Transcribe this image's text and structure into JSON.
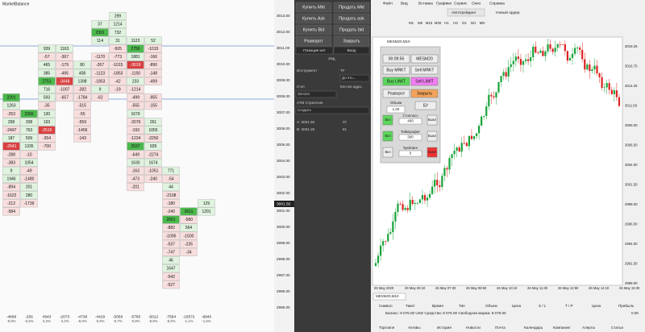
{
  "cluster": {
    "title": "MarketBalance",
    "columns": [
      [
        null,
        null,
        null,
        null,
        null,
        null,
        null,
        null,
        null,
        null,
        2291,
        1263,
        -253,
        258,
        -2497,
        187,
        -2941,
        -288,
        -383,
        9,
        1946,
        -894,
        -1622,
        -212,
        -584
      ],
      [
        null,
        null,
        null,
        null,
        null,
        null,
        null,
        null,
        null,
        null,
        null,
        null,
        2266,
        208,
        763,
        509,
        1335,
        -10,
        1054,
        -49,
        -1480,
        201,
        280,
        -1739
      ],
      [
        null,
        null,
        null,
        null,
        939,
        -57,
        465,
        385,
        2751,
        716,
        593,
        -35,
        130,
        193,
        -2510,
        -354,
        -700
      ],
      [
        null,
        null,
        null,
        null,
        1163,
        -367,
        -179,
        -495,
        -3448,
        -1007,
        -657
      ],
      [
        null,
        null,
        null,
        null,
        null,
        null,
        80,
        408,
        1398,
        -282,
        -1784,
        -515,
        -55,
        -559,
        -1456,
        -143
      ],
      [
        null,
        37,
        2391,
        114,
        null,
        -1170,
        -267,
        -1123,
        -1853,
        9,
        -62
      ],
      [
        299,
        1214,
        732,
        31,
        -505,
        -773,
        -1015,
        -1853,
        -42,
        -19
      ],
      [
        null,
        null,
        null,
        1123,
        2756,
        1881,
        -3019,
        -1150,
        233,
        -1214,
        -499,
        -555,
        1679,
        -2076,
        -193,
        -1224,
        2537,
        -649,
        1630,
        -163,
        -473,
        -201
      ],
      [
        null,
        null,
        null,
        52,
        -1015,
        -166,
        -890,
        -148,
        -499,
        null,
        -955,
        -155,
        null,
        261,
        1055,
        -2250,
        928,
        -2274,
        1674,
        -1051,
        -240
      ],
      [
        null,
        null,
        null,
        null,
        null,
        null,
        null,
        null,
        null,
        null,
        null,
        null,
        null,
        null,
        null,
        null,
        null,
        null,
        null,
        771,
        -54,
        44,
        -2108,
        -180,
        -240,
        2651,
        -882,
        -1095,
        -537,
        -747,
        46,
        1647,
        -542,
        -527
      ],
      [
        null,
        null,
        null,
        null,
        null,
        null,
        null,
        null,
        null,
        null,
        null,
        null,
        null,
        null,
        null,
        null,
        null,
        null,
        null,
        null,
        null,
        null,
        null,
        null,
        2611,
        -580,
        564,
        -1500,
        -235,
        -34
      ],
      [
        null,
        null,
        null,
        null,
        null,
        null,
        null,
        null,
        null,
        null,
        null,
        null,
        null,
        null,
        null,
        null,
        null,
        null,
        null,
        null,
        null,
        null,
        null,
        129,
        1291
      ]
    ],
    "totals": [
      -4668,
      -256,
      4943,
      -2073,
      -4738,
      -4429,
      -5058,
      -5765,
      -5012,
      -7564,
      -10572,
      -9940
    ],
    "percents": [
      "-8,8%",
      "-0,6%",
      "6,3%",
      "-3,2%",
      "-8,0%",
      "-6,9%",
      "-9,7%",
      "-0,8%",
      "-8,8%",
      "-8,0%",
      "-1,1%",
      "-1,6%"
    ]
  },
  "price_axis": {
    "labels": [
      "3013.00",
      "3012.00",
      "3011.00",
      "3010.00",
      "3009.00",
      "3008.00",
      "3007.00",
      "3006.00",
      "3005.00",
      "3004.00",
      "3003.00",
      "3002.00",
      "3001.00",
      "3000.00",
      "2999.00",
      "2998.00",
      "2997.00",
      "2996.00",
      "2995.00"
    ],
    "current": "3001.50"
  },
  "trade_panel": {
    "buy": [
      "Купить Mkt",
      "Купить Ask",
      "Купить Bid",
      "Разворот"
    ],
    "sell": [
      "Продать Mkt",
      "Продать ask",
      "Продать bid",
      "Закрыть"
    ],
    "tabs": [
      "Позиция нет",
      "Вход"
    ],
    "pnl": "PNL",
    "instrument": "Инструмент",
    "tf": "TF",
    "tf_value": "До ять...",
    "account": "Счет",
    "account_value": "Sim101",
    "qty": "Кол-во одра..",
    "atm": "ATM Стратегия",
    "atm_value": "Создать",
    "ask": "A: 3001.50",
    "ask_qty": "07",
    "bid": "B: 3001.25",
    "bid_qty": "81"
  },
  "mt5": {
    "menu": [
      "Файл",
      "Вид",
      "Вставка",
      "Графики",
      "Сервис",
      "Окно",
      "Справка"
    ],
    "toolbar": [
      "Автотрейдинг",
      "Новый ордер"
    ],
    "timeframes": [
      "M1",
      "M5",
      "M15",
      "M30",
      "H1",
      "H4",
      "D1",
      "W1",
      "MN"
    ],
    "chart_title": "MESM20,M10",
    "panel": {
      "time": "00:09:56",
      "symbol": "MESM20",
      "buy_market": "Buy MRKT",
      "sell_market": "Sell MRKT",
      "buy_limit": "Buy LIMIT",
      "sell_limit": "Sell LIMIT",
      "reverse": "Разворот",
      "close": "Закрыть",
      "volume": "Объем",
      "volume_value": "1.00",
      "breakeven": "БУ",
      "stoploss": "Стоплосс",
      "stoploss_value": "400",
      "takeprofit": "Тейкпрофит",
      "takeprofit_value": "300",
      "trailing": "Трейлинг",
      "trailing_value": "0",
      "on": "Вкл",
      "off": "Выкл"
    },
    "y_labels": [
      "3019.25",
      "3016.75",
      "3014.25",
      "3011.50",
      "3009.00",
      "3006.50",
      "3004.00",
      "3001.50",
      "2999.00",
      "2996.50",
      "2994.00",
      "2991.50",
      "2989.00"
    ],
    "x_labels": [
      "26 May 2020",
      "26 May 06:10",
      "26 May 07:30",
      "26 May 08:50",
      "26 May 10:10",
      "26 May 11:30",
      "26 May 12:50",
      "26 May 14:10",
      "26 May 15:30"
    ],
    "tab": "MESM20,M10",
    "table_header": [
      "Символ",
      "Тикет",
      "Время",
      "Тип",
      "Объем",
      "Цена",
      "S / L",
      "T / P",
      "Цена",
      "Прибыль"
    ],
    "balance": "Баланс: 8 076.00 USD  Средства: 8 076.00  Свободная маржа: 8 076.00",
    "profit": "0.00",
    "bottom_tabs": [
      "Торговля",
      "Активы",
      "История",
      "Новости",
      "Почта",
      "Календарь",
      "Компания",
      "Алерты",
      "Статьи"
    ]
  }
}
